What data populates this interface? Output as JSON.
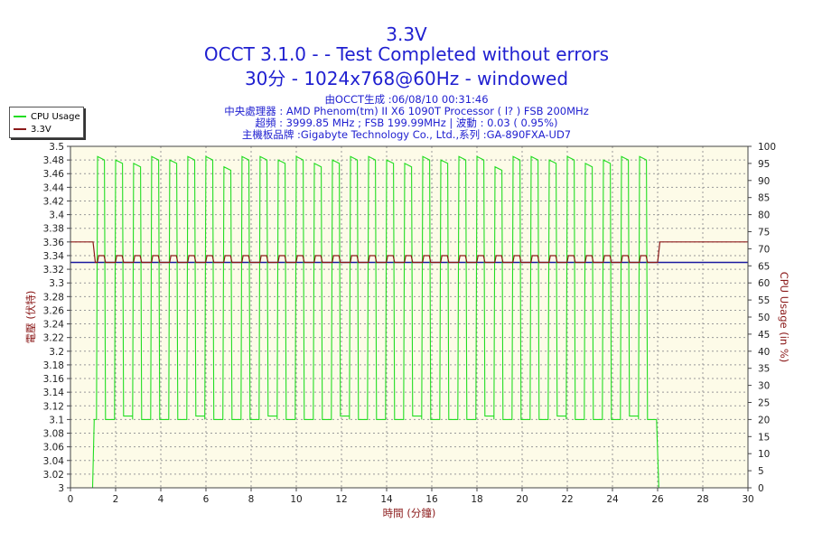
{
  "header": {
    "title": "3.3V",
    "subtitle": "OCCT 3.1.0 -  - Test Completed without errors",
    "subtitle2": "30分 - 1024x768@60Hz - windowed",
    "info": [
      "由OCCT生成 :06/08/10 00:31:46",
      "中央處理器 : AMD Phenom(tm) II X6 1090T Processor (   l? ) FSB 200MHz",
      "超頻 : 3999.85 MHz ; FSB 199.99MHz | 波動 : 0.03 ( 0.95%)",
      "主機板品牌 :Gigabyte Technology Co., Ltd.,系列 :GA-890FXA-UD7"
    ]
  },
  "chart_data": {
    "type": "line",
    "xlabel": "時間 (分鐘)",
    "ylabel_left": "電壓 (伏特)",
    "ylabel_right": "CPU Usage (in %)",
    "xlim": [
      0,
      30
    ],
    "ylim_left": [
      3.0,
      3.5
    ],
    "ylim_right": [
      0,
      100
    ],
    "x_ticks": [
      0,
      2,
      4,
      6,
      8,
      10,
      12,
      14,
      16,
      18,
      20,
      22,
      24,
      26,
      28,
      30
    ],
    "y_left_ticks": [
      "3",
      "3.02",
      "3.04",
      "3.06",
      "3.08",
      "3.1",
      "3.12",
      "3.14",
      "3.16",
      "3.18",
      "3.2",
      "3.22",
      "3.24",
      "3.26",
      "3.28",
      "3.3",
      "3.32",
      "3.34",
      "3.36",
      "3.38",
      "3.4",
      "3.42",
      "3.44",
      "3.46",
      "3.48",
      "3.5"
    ],
    "y_right_ticks": [
      0,
      5,
      10,
      15,
      20,
      25,
      30,
      35,
      40,
      45,
      50,
      55,
      60,
      65,
      70,
      75,
      80,
      85,
      90,
      95,
      100
    ],
    "grid": true,
    "legend": "top-left",
    "reference_line": {
      "value": 3.33,
      "axis": "left",
      "color": "#1a1aa0"
    },
    "series": [
      {
        "name": "CPU Usage",
        "axis": "right",
        "color": "#22dd22",
        "idle_before_min": 1.0,
        "idle_after_min": 26.0,
        "oscillation_high_pct": 97,
        "oscillation_low_pct": 20,
        "cycle_minutes": 0.8,
        "end_value_pct": 0
      },
      {
        "name": "3.3V",
        "axis": "left",
        "color": "#8b1a1a",
        "idle_value": 3.36,
        "load_high": 3.34,
        "load_low": 3.33
      }
    ]
  }
}
